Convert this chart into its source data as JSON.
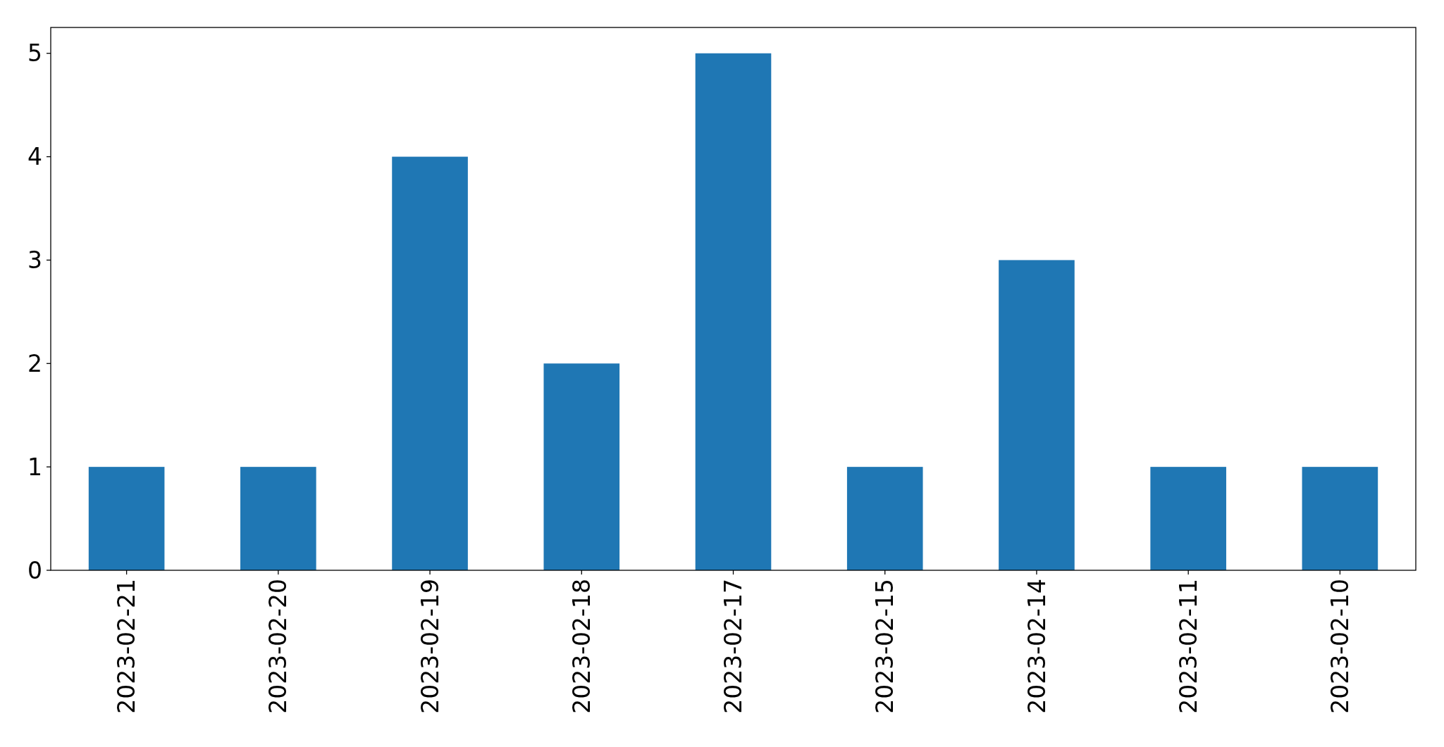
{
  "chart_data": {
    "type": "bar",
    "categories": [
      "2023-02-21",
      "2023-02-20",
      "2023-02-19",
      "2023-02-18",
      "2023-02-17",
      "2023-02-15",
      "2023-02-14",
      "2023-02-11",
      "2023-02-10"
    ],
    "values": [
      1,
      1,
      4,
      2,
      5,
      1,
      3,
      1,
      1
    ],
    "color": "#1f77b4",
    "ylim": [
      0,
      5.25
    ],
    "yticks": [
      0,
      1,
      2,
      3,
      4,
      5
    ]
  }
}
